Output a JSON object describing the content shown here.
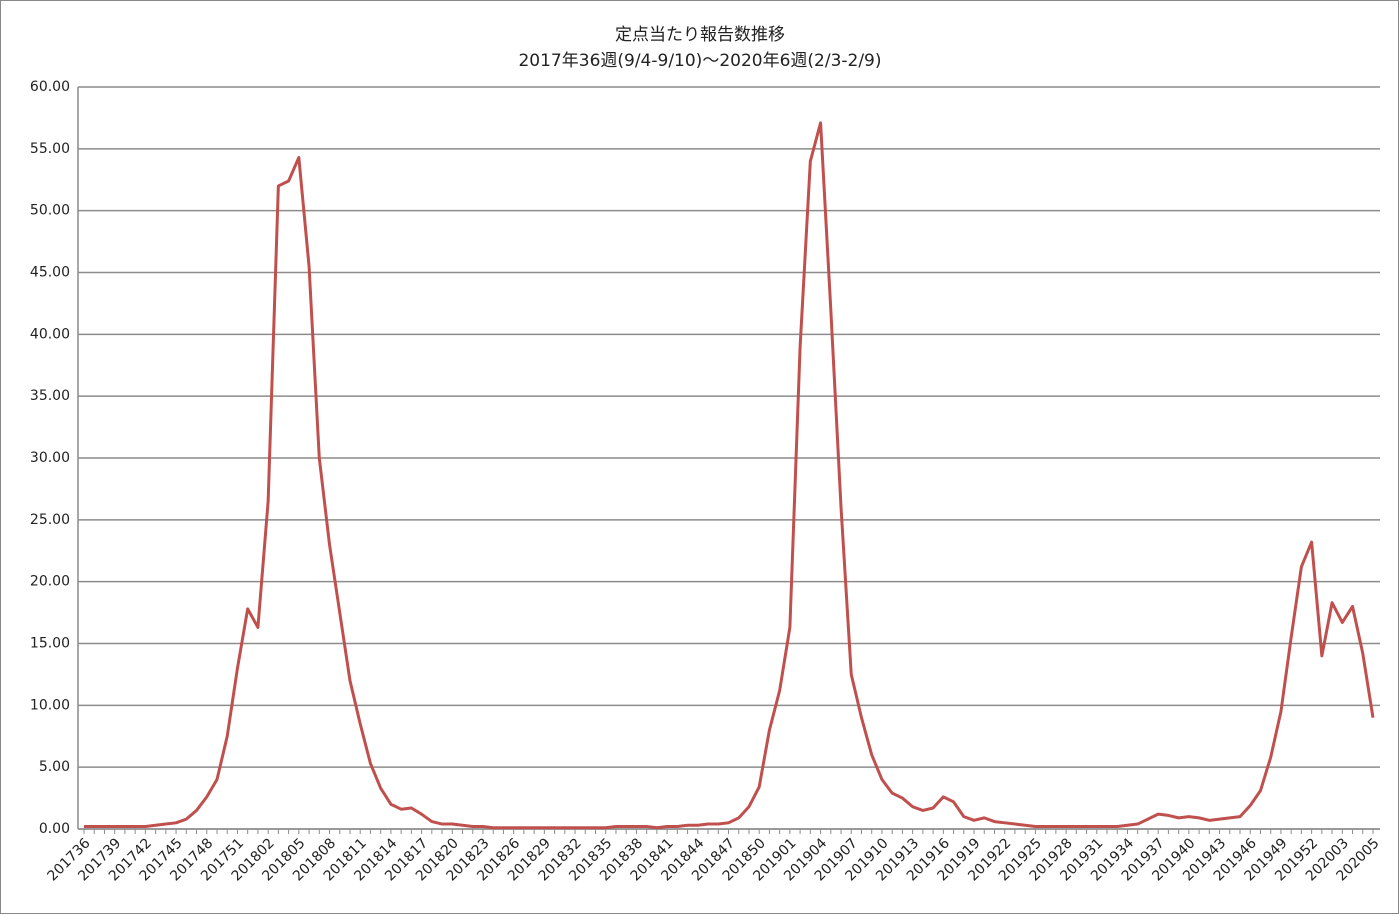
{
  "chart_data": {
    "type": "line",
    "title": "定点当たり報告数推移",
    "subtitle": "2017年36週(9/4-9/10)～2020年6週(2/3-2/9)",
    "categories": [
      "201736",
      null,
      null,
      "201739",
      null,
      null,
      "201742",
      null,
      null,
      "201745",
      null,
      null,
      "201748",
      null,
      null,
      "201751",
      null,
      null,
      "201802",
      null,
      null,
      "201805",
      null,
      null,
      "201808",
      null,
      null,
      "201811",
      null,
      null,
      "201814",
      null,
      null,
      "201817",
      null,
      null,
      "201820",
      null,
      null,
      "201823",
      null,
      null,
      "201826",
      null,
      null,
      "201829",
      null,
      null,
      "201832",
      null,
      null,
      "201835",
      null,
      null,
      "201838",
      null,
      null,
      "201841",
      null,
      null,
      "201844",
      null,
      null,
      "201847",
      null,
      null,
      "201850",
      null,
      null,
      "201901",
      null,
      null,
      "201904",
      null,
      null,
      "201907",
      null,
      null,
      "201910",
      null,
      null,
      "201913",
      null,
      null,
      "201916",
      null,
      null,
      "201919",
      null,
      null,
      "201922",
      null,
      null,
      "201925",
      null,
      null,
      "201928",
      null,
      null,
      "201931",
      null,
      null,
      "201934",
      null,
      null,
      "201937",
      null,
      null,
      "201940",
      null,
      null,
      "201943",
      null,
      null,
      "201946",
      null,
      null,
      "201949",
      null,
      null,
      "201952",
      null,
      null,
      "202003",
      null,
      null,
      "202005"
    ],
    "values": [
      0.2,
      0.2,
      0.2,
      0.2,
      0.2,
      0.2,
      0.2,
      0.3,
      0.4,
      0.5,
      0.8,
      1.5,
      2.6,
      4.0,
      7.5,
      13.0,
      17.8,
      16.3,
      26.5,
      52.0,
      52.4,
      54.3,
      45.5,
      30.0,
      23.0,
      17.5,
      12.0,
      8.5,
      5.3,
      3.3,
      2.0,
      1.6,
      1.7,
      1.2,
      0.6,
      0.4,
      0.4,
      0.3,
      0.2,
      0.2,
      0.1,
      0.1,
      0.1,
      0.1,
      0.1,
      0.1,
      0.1,
      0.1,
      0.1,
      0.1,
      0.1,
      0.1,
      0.2,
      0.2,
      0.2,
      0.2,
      0.1,
      0.2,
      0.2,
      0.3,
      0.3,
      0.4,
      0.4,
      0.5,
      0.9,
      1.8,
      3.4,
      8.0,
      11.2,
      16.3,
      39.0,
      54.0,
      57.1,
      42.0,
      26.0,
      12.5,
      9.0,
      6.0,
      4.0,
      2.9,
      2.5,
      1.8,
      1.5,
      1.7,
      2.6,
      2.2,
      1.0,
      0.7,
      0.9,
      0.6,
      0.5,
      0.4,
      0.3,
      0.2,
      0.2,
      0.2,
      0.2,
      0.2,
      0.2,
      0.2,
      0.2,
      0.2,
      0.3,
      0.4,
      0.8,
      1.2,
      1.1,
      0.9,
      1.0,
      0.9,
      0.7,
      0.8,
      0.9,
      1.0,
      1.9,
      3.1,
      5.8,
      9.5,
      15.5,
      21.2,
      23.2,
      14.0,
      18.3,
      16.7,
      18.0,
      14.2,
      9.0
    ],
    "color": "#c0504d",
    "ylim": [
      0,
      60
    ],
    "yticks": [
      {
        "value": 0,
        "label": "0.00"
      },
      {
        "value": 5,
        "label": "5.00"
      },
      {
        "value": 10,
        "label": "10.00"
      },
      {
        "value": 15,
        "label": "15.00"
      },
      {
        "value": 20,
        "label": "20.00"
      },
      {
        "value": 25,
        "label": "25.00"
      },
      {
        "value": 30,
        "label": "30.00"
      },
      {
        "value": 35,
        "label": "35.00"
      },
      {
        "value": 40,
        "label": "40.00"
      },
      {
        "value": 45,
        "label": "45.00"
      },
      {
        "value": 50,
        "label": "50.00"
      },
      {
        "value": 55,
        "label": "55.00"
      },
      {
        "value": 60,
        "label": "60.00"
      }
    ],
    "grid": true
  }
}
